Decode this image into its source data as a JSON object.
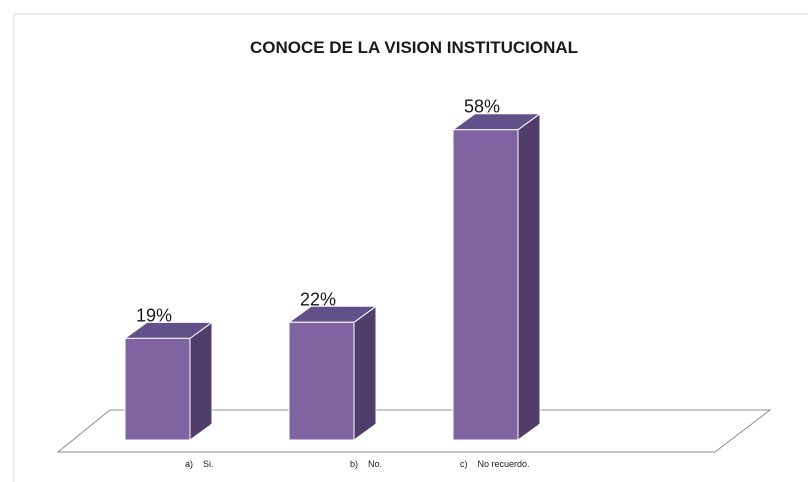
{
  "chart_data": {
    "type": "bar3d",
    "title": "CONOCE DE LA VISION INSTITUCIONAL",
    "categories": [
      "a)    Si.",
      "b)    No.",
      "c)    No recuerdo."
    ],
    "values": [
      19,
      22,
      58
    ],
    "value_labels": [
      "19%",
      "22%",
      "58%"
    ],
    "color": "#8064a2"
  }
}
